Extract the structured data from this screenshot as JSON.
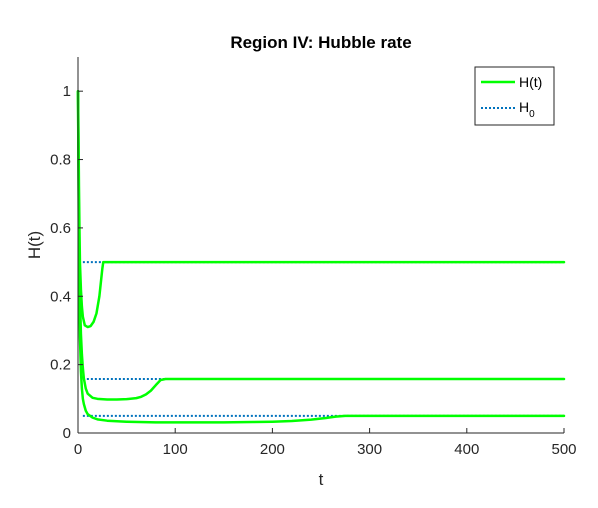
{
  "chart_data": {
    "type": "line",
    "title": "Region IV: Hubble rate",
    "xlabel": "t",
    "ylabel": "H(t)",
    "xlim": [
      0,
      500
    ],
    "ylim": [
      0,
      1.1
    ],
    "x_ticks": [
      0,
      100,
      200,
      300,
      400,
      500
    ],
    "y_ticks": [
      0,
      0.2,
      0.4,
      0.6,
      0.8,
      1
    ],
    "x_tick_labels": [
      "0",
      "100",
      "200",
      "300",
      "400",
      "500"
    ],
    "y_tick_labels": [
      "0",
      "0.2",
      "0.4",
      "0.6",
      "0.8",
      "1"
    ],
    "grid": false,
    "legend_position": "top-right",
    "legend": [
      {
        "label": "H(t)",
        "style": "solid",
        "color": "#00ff00"
      },
      {
        "label": "H",
        "subscript": "0",
        "style": "dotted",
        "color": "#0072bd"
      }
    ],
    "series": [
      {
        "legend": "H(t)",
        "color": "#00ff00",
        "style": "solid",
        "curves": [
          {
            "x": [
              0,
              0.5,
              1,
              1.5,
              2,
              3,
              4,
              5,
              7,
              10,
              13,
              16,
              19,
              22,
              25,
              26,
              50,
              100,
              200,
              300,
              400,
              500
            ],
            "y": [
              1.0,
              0.88,
              0.72,
              0.6,
              0.5,
              0.42,
              0.37,
              0.34,
              0.315,
              0.31,
              0.313,
              0.325,
              0.35,
              0.4,
              0.48,
              0.5,
              0.5,
              0.5,
              0.5,
              0.5,
              0.5,
              0.5
            ]
          },
          {
            "x": [
              0,
              1,
              2,
              3,
              4,
              5,
              6,
              8,
              10,
              15,
              20,
              30,
              40,
              50,
              60,
              65,
              70,
              75,
              80,
              85,
              90,
              100,
              200,
              300,
              400,
              500
            ],
            "y": [
              1.0,
              0.6,
              0.4,
              0.29,
              0.23,
              0.19,
              0.16,
              0.13,
              0.115,
              0.103,
              0.1,
              0.098,
              0.098,
              0.099,
              0.102,
              0.106,
              0.113,
              0.124,
              0.14,
              0.155,
              0.158,
              0.158,
              0.158,
              0.158,
              0.158,
              0.158
            ]
          },
          {
            "x": [
              0,
              1,
              2,
              3,
              4,
              5,
              6,
              8,
              10,
              15,
              20,
              30,
              50,
              80,
              100,
              120,
              150,
              180,
              200,
              220,
              240,
              255,
              265,
              275,
              300,
              400,
              500
            ],
            "y": [
              1.0,
              0.5,
              0.28,
              0.18,
              0.13,
              0.1,
              0.085,
              0.065,
              0.055,
              0.045,
              0.04,
              0.036,
              0.033,
              0.031,
              0.031,
              0.031,
              0.031,
              0.032,
              0.033,
              0.035,
              0.039,
              0.044,
              0.048,
              0.05,
              0.05,
              0.05,
              0.05
            ]
          }
        ]
      },
      {
        "legend": "H_0",
        "color": "#0072bd",
        "style": "dotted",
        "levels": [
          0.5,
          0.158,
          0.05
        ],
        "x_start": 5,
        "x_end": 500
      }
    ]
  }
}
